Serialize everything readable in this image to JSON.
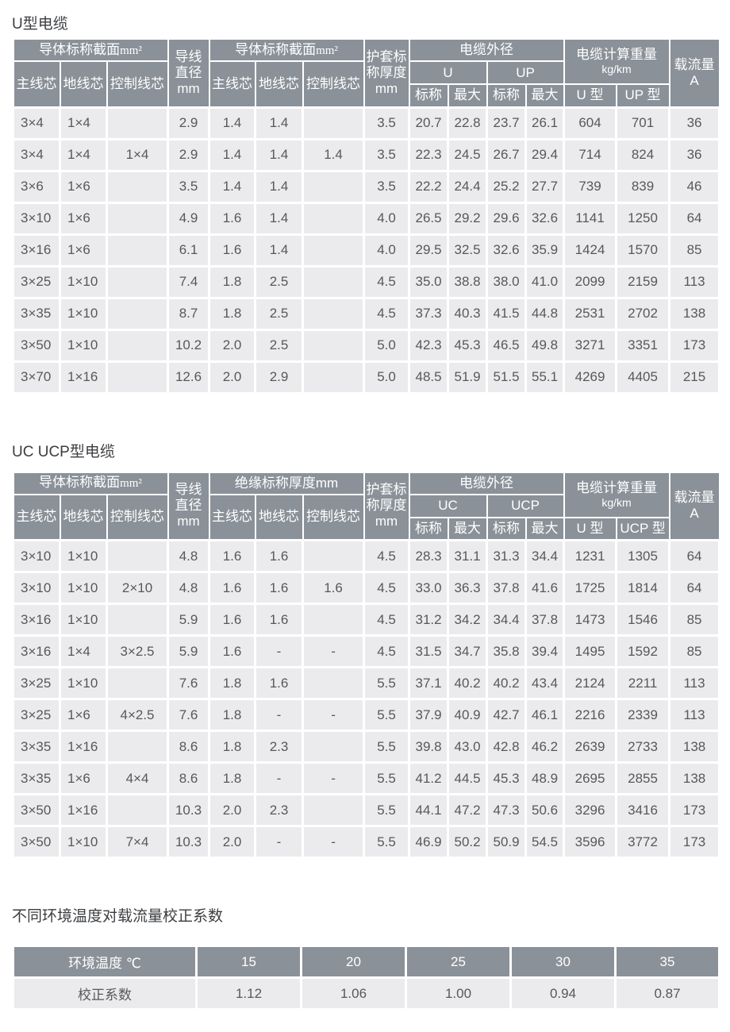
{
  "colors": {
    "header_bg": "#8a9198",
    "cell_bg": "#ebebed",
    "header_text": "#ffffff",
    "cell_text": "#56585b",
    "title_text": "#3b3d40"
  },
  "u": {
    "title": "U型电缆",
    "header": {
      "group1_cjk": "导体标称截面",
      "group1_unit": "mm²",
      "wire_dia": "导线\n直径\nmm",
      "group2_cjk": "导体标称截面",
      "group2_unit": "mm²",
      "sheath": "护套标\n称厚度\nmm",
      "main_core": "主线芯",
      "ground_core": "地线芯",
      "control_core": "控制线芯",
      "od_group": "电缆外径",
      "od_sub1": "U",
      "od_sub2": "UP",
      "nominal1": "标称",
      "max1": "最大",
      "nominal2": "标称",
      "max2": "最大",
      "weight_cjk": "电缆计算重量",
      "weight_unit": "kg/km",
      "weight_sub1": "U 型",
      "weight_sub2": "UP 型",
      "ampacity": "载流量\nA"
    },
    "rows": [
      [
        "3×4",
        "1×4",
        "",
        "2.9",
        "1.4",
        "1.4",
        "",
        "3.5",
        "20.7",
        "22.8",
        "23.7",
        "26.1",
        "604",
        "701",
        "36"
      ],
      [
        "3×4",
        "1×4",
        "1×4",
        "2.9",
        "1.4",
        "1.4",
        "1.4",
        "3.5",
        "22.3",
        "24.5",
        "26.7",
        "29.4",
        "714",
        "824",
        "36"
      ],
      [
        "3×6",
        "1×6",
        "",
        "3.5",
        "1.4",
        "1.4",
        "",
        "3.5",
        "22.2",
        "24.4",
        "25.2",
        "27.7",
        "739",
        "839",
        "46"
      ],
      [
        "3×10",
        "1×6",
        "",
        "4.9",
        "1.6",
        "1.4",
        "",
        "4.0",
        "26.5",
        "29.2",
        "29.6",
        "32.6",
        "1141",
        "1250",
        "64"
      ],
      [
        "3×16",
        "1×6",
        "",
        "6.1",
        "1.6",
        "1.4",
        "",
        "4.0",
        "29.5",
        "32.5",
        "32.6",
        "35.9",
        "1424",
        "1570",
        "85"
      ],
      [
        "3×25",
        "1×10",
        "",
        "7.4",
        "1.8",
        "2.5",
        "",
        "4.5",
        "35.0",
        "38.8",
        "38.0",
        "41.0",
        "2099",
        "2159",
        "113"
      ],
      [
        "3×35",
        "1×10",
        "",
        "8.7",
        "1.8",
        "2.5",
        "",
        "4.5",
        "37.3",
        "40.3",
        "41.5",
        "44.8",
        "2531",
        "2702",
        "138"
      ],
      [
        "3×50",
        "1×10",
        "",
        "10.2",
        "2.0",
        "2.5",
        "",
        "5.0",
        "42.3",
        "45.3",
        "46.5",
        "49.8",
        "3271",
        "3351",
        "173"
      ],
      [
        "3×70",
        "1×16",
        "",
        "12.6",
        "2.0",
        "2.9",
        "",
        "5.0",
        "48.5",
        "51.9",
        "51.5",
        "55.1",
        "4269",
        "4405",
        "215"
      ]
    ]
  },
  "uc": {
    "title": "UC UCP型电缆",
    "header": {
      "group1_cjk": "导体标称截面",
      "group1_unit": "mm²",
      "wire_dia": "导线\n直径\nmm",
      "group2": "绝缘标称厚度mm",
      "sheath": "护套标\n称厚度\nmm",
      "main_core": "主线芯",
      "ground_core": "地线芯",
      "control_core": "控制线芯",
      "od_group": "电缆外径",
      "od_sub1": "UC",
      "od_sub2": "UCP",
      "nominal1": "标称",
      "max1": "最大",
      "nominal2": "标称",
      "max2": "最大",
      "weight_cjk": "电缆计算重量",
      "weight_unit": "kg/km",
      "weight_sub1": "U 型",
      "weight_sub2": "UCP 型",
      "ampacity": "载流量\nA"
    },
    "rows": [
      [
        "3×10",
        "1×10",
        "",
        "4.8",
        "1.6",
        "1.6",
        "",
        "4.5",
        "28.3",
        "31.1",
        "31.3",
        "34.4",
        "1231",
        "1305",
        "64"
      ],
      [
        "3×10",
        "1×10",
        "2×10",
        "4.8",
        "1.6",
        "1.6",
        "1.6",
        "4.5",
        "33.0",
        "36.3",
        "37.8",
        "41.6",
        "1725",
        "1814",
        "64"
      ],
      [
        "3×16",
        "1×10",
        "",
        "5.9",
        "1.6",
        "1.6",
        "",
        "4.5",
        "31.2",
        "34.2",
        "34.4",
        "37.8",
        "1473",
        "1546",
        "85"
      ],
      [
        "3×16",
        "1×4",
        "3×2.5",
        "5.9",
        "1.6",
        "-",
        "-",
        "4.5",
        "31.5",
        "34.7",
        "35.8",
        "39.4",
        "1495",
        "1592",
        "85"
      ],
      [
        "3×25",
        "1×10",
        "",
        "7.6",
        "1.8",
        "1.6",
        "",
        "5.5",
        "37.1",
        "40.2",
        "40.2",
        "43.4",
        "2124",
        "2211",
        "113"
      ],
      [
        "3×25",
        "1×6",
        "4×2.5",
        "7.6",
        "1.8",
        "-",
        "-",
        "5.5",
        "37.9",
        "40.9",
        "42.7",
        "46.1",
        "2216",
        "2339",
        "113"
      ],
      [
        "3×35",
        "1×16",
        "",
        "8.6",
        "1.8",
        "2.3",
        "",
        "5.5",
        "39.8",
        "43.0",
        "42.8",
        "46.2",
        "2639",
        "2733",
        "138"
      ],
      [
        "3×35",
        "1×6",
        "4×4",
        "8.6",
        "1.8",
        "-",
        "-",
        "5.5",
        "41.2",
        "44.5",
        "45.3",
        "48.9",
        "2695",
        "2855",
        "138"
      ],
      [
        "3×50",
        "1×16",
        "",
        "10.3",
        "2.0",
        "2.3",
        "",
        "5.5",
        "44.1",
        "47.2",
        "47.3",
        "50.6",
        "3296",
        "3416",
        "173"
      ],
      [
        "3×50",
        "1×10",
        "7×4",
        "10.3",
        "2.0",
        "-",
        "-",
        "5.5",
        "46.9",
        "50.2",
        "50.9",
        "54.5",
        "3596",
        "3772",
        "173"
      ]
    ]
  },
  "corr": {
    "title": "不同环境温度对载流量校正系数",
    "header_label": "环境温度  ℃",
    "temps": [
      "15",
      "20",
      "25",
      "30",
      "35"
    ],
    "row_label": "校正系数",
    "factors": [
      "1.12",
      "1.06",
      "1.00",
      "0.94",
      "0.87"
    ]
  }
}
